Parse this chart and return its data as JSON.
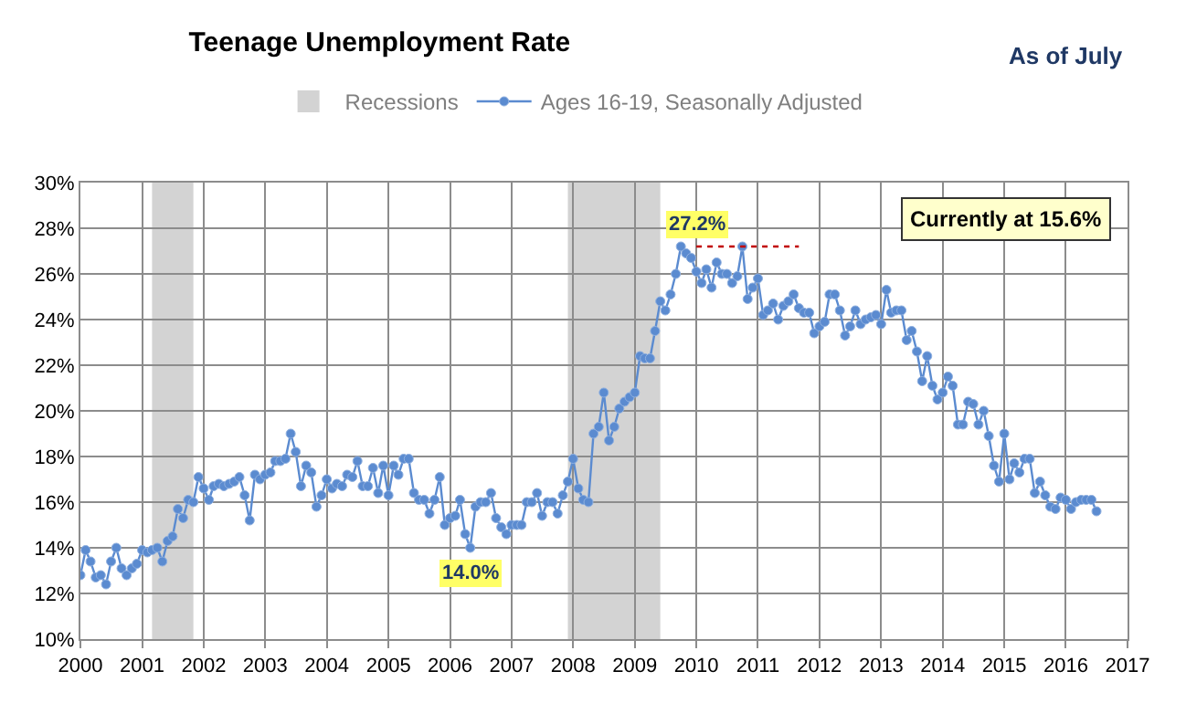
{
  "chart_data": {
    "type": "line",
    "title": "Teenage Unemployment Rate",
    "subtitle": "As of July",
    "x": [
      "2000-01",
      "2000-02",
      "2000-03",
      "2000-04",
      "2000-05",
      "2000-06",
      "2000-07",
      "2000-08",
      "2000-09",
      "2000-10",
      "2000-11",
      "2000-12",
      "2001-01",
      "2001-02",
      "2001-03",
      "2001-04",
      "2001-05",
      "2001-06",
      "2001-07",
      "2001-08",
      "2001-09",
      "2001-10",
      "2001-11",
      "2001-12",
      "2002-01",
      "2002-02",
      "2002-03",
      "2002-04",
      "2002-05",
      "2002-06",
      "2002-07",
      "2002-08",
      "2002-09",
      "2002-10",
      "2002-11",
      "2002-12",
      "2003-01",
      "2003-02",
      "2003-03",
      "2003-04",
      "2003-05",
      "2003-06",
      "2003-07",
      "2003-08",
      "2003-09",
      "2003-10",
      "2003-11",
      "2003-12",
      "2004-01",
      "2004-02",
      "2004-03",
      "2004-04",
      "2004-05",
      "2004-06",
      "2004-07",
      "2004-08",
      "2004-09",
      "2004-10",
      "2004-11",
      "2004-12",
      "2005-01",
      "2005-02",
      "2005-03",
      "2005-04",
      "2005-05",
      "2005-06",
      "2005-07",
      "2005-08",
      "2005-09",
      "2005-10",
      "2005-11",
      "2005-12",
      "2006-01",
      "2006-02",
      "2006-03",
      "2006-04",
      "2006-05",
      "2006-06",
      "2006-07",
      "2006-08",
      "2006-09",
      "2006-10",
      "2006-11",
      "2006-12",
      "2007-01",
      "2007-02",
      "2007-03",
      "2007-04",
      "2007-05",
      "2007-06",
      "2007-07",
      "2007-08",
      "2007-09",
      "2007-10",
      "2007-11",
      "2007-12",
      "2008-01",
      "2008-02",
      "2008-03",
      "2008-04",
      "2008-05",
      "2008-06",
      "2008-07",
      "2008-08",
      "2008-09",
      "2008-10",
      "2008-11",
      "2008-12",
      "2009-01",
      "2009-02",
      "2009-03",
      "2009-04",
      "2009-05",
      "2009-06",
      "2009-07",
      "2009-08",
      "2009-09",
      "2009-10",
      "2009-11",
      "2009-12",
      "2010-01",
      "2010-02",
      "2010-03",
      "2010-04",
      "2010-05",
      "2010-06",
      "2010-07",
      "2010-08",
      "2010-09",
      "2010-10",
      "2010-11",
      "2010-12",
      "2011-01",
      "2011-02",
      "2011-03",
      "2011-04",
      "2011-05",
      "2011-06",
      "2011-07",
      "2011-08",
      "2011-09",
      "2011-10",
      "2011-11",
      "2011-12",
      "2012-01",
      "2012-02",
      "2012-03",
      "2012-04",
      "2012-05",
      "2012-06",
      "2012-07",
      "2012-08",
      "2012-09",
      "2012-10",
      "2012-11",
      "2012-12",
      "2013-01",
      "2013-02",
      "2013-03",
      "2013-04",
      "2013-05",
      "2013-06",
      "2013-07",
      "2013-08",
      "2013-09",
      "2013-10",
      "2013-11",
      "2013-12",
      "2014-01",
      "2014-02",
      "2014-03",
      "2014-04",
      "2014-05",
      "2014-06",
      "2014-07",
      "2014-08",
      "2014-09",
      "2014-10",
      "2014-11",
      "2014-12",
      "2015-01",
      "2015-02",
      "2015-03",
      "2015-04",
      "2015-05",
      "2015-06",
      "2015-07",
      "2015-08",
      "2015-09",
      "2015-10",
      "2015-11",
      "2015-12",
      "2016-01",
      "2016-02",
      "2016-03",
      "2016-04",
      "2016-05",
      "2016-06",
      "2016-07"
    ],
    "series": [
      {
        "name": "Ages 16-19, Seasonally Adjusted",
        "color": "#5b8bd0",
        "marker": "circle",
        "values": [
          12.8,
          13.9,
          13.4,
          12.7,
          12.8,
          12.4,
          13.4,
          14.0,
          13.1,
          12.8,
          13.1,
          13.3,
          13.9,
          13.8,
          13.9,
          14.0,
          13.4,
          14.3,
          14.5,
          15.7,
          15.3,
          16.1,
          16.0,
          17.1,
          16.6,
          16.1,
          16.7,
          16.8,
          16.7,
          16.8,
          16.9,
          17.1,
          16.3,
          15.2,
          17.2,
          17.0,
          17.2,
          17.3,
          17.8,
          17.8,
          17.9,
          19.0,
          18.2,
          16.7,
          17.6,
          17.3,
          15.8,
          16.3,
          17.0,
          16.6,
          16.8,
          16.7,
          17.2,
          17.1,
          17.8,
          16.7,
          16.7,
          17.5,
          16.4,
          17.6,
          16.3,
          17.6,
          17.2,
          17.9,
          17.9,
          16.4,
          16.1,
          16.1,
          15.5,
          16.1,
          17.1,
          15.0,
          15.3,
          15.4,
          16.1,
          14.6,
          14.0,
          15.8,
          16.0,
          16.0,
          16.4,
          15.3,
          14.9,
          14.6,
          15.0,
          15.0,
          15.0,
          16.0,
          16.0,
          16.4,
          15.4,
          16.0,
          16.0,
          15.5,
          16.3,
          16.9,
          17.9,
          16.6,
          16.1,
          16.0,
          19.0,
          19.3,
          20.8,
          18.7,
          19.3,
          20.1,
          20.4,
          20.6,
          20.8,
          22.4,
          22.3,
          22.3,
          23.5,
          24.8,
          24.4,
          25.1,
          26.0,
          27.2,
          26.9,
          26.7,
          26.1,
          25.6,
          26.2,
          25.4,
          26.5,
          26.0,
          26.0,
          25.6,
          25.9,
          27.2,
          24.9,
          25.4,
          25.8,
          24.2,
          24.4,
          24.7,
          24.0,
          24.6,
          24.8,
          25.1,
          24.5,
          24.3,
          24.3,
          23.4,
          23.7,
          23.9,
          25.1,
          25.1,
          24.4,
          23.3,
          23.7,
          24.4,
          23.8,
          24.0,
          24.1,
          24.2,
          23.8,
          25.3,
          24.3,
          24.4,
          24.4,
          23.1,
          23.5,
          22.6,
          21.3,
          22.4,
          21.1,
          20.5,
          20.8,
          21.5,
          21.1,
          19.4,
          19.4,
          20.4,
          20.3,
          19.4,
          20.0,
          18.9,
          17.6,
          16.9,
          19.0,
          17.0,
          17.7,
          17.3,
          17.9,
          17.9,
          16.4,
          16.9,
          16.3,
          15.8,
          15.7,
          16.2,
          16.1,
          15.7,
          16.0,
          16.1,
          16.1,
          16.1,
          15.6
        ]
      },
      {
        "type": "line",
        "color": "#c00000",
        "line_style": "dotted",
        "marker": "none",
        "x": [
          "2010-01",
          "2011-09"
        ],
        "values": [
          27.2,
          27.2
        ]
      }
    ],
    "bands": [
      {
        "axis": "x",
        "from": "2001-03",
        "to": "2001-11",
        "label": "Recessions",
        "color": "#d3d3d3"
      },
      {
        "axis": "x",
        "from": "2007-12",
        "to": "2009-06",
        "color": "#d3d3d3"
      }
    ],
    "annotations": [
      {
        "text": "27.2%",
        "x": "2010-01",
        "y": 27.2
      },
      {
        "text": "14.0%",
        "x": "2006-05",
        "y": 14.0
      },
      "Currently at 15.6%"
    ],
    "xlim": [
      "2000",
      "2017"
    ],
    "xticks": [
      "2000",
      "2001",
      "2002",
      "2003",
      "2004",
      "2005",
      "2006",
      "2007",
      "2008",
      "2009",
      "2010",
      "2011",
      "2012",
      "2013",
      "2014",
      "2015",
      "2016",
      "2017"
    ],
    "ylim": [
      10,
      30
    ],
    "yticks": [
      {
        "value": 10,
        "label": "10%"
      },
      {
        "value": 12,
        "label": "12%"
      },
      {
        "value": 14,
        "label": "14%"
      },
      {
        "value": 16,
        "label": "16%"
      },
      {
        "value": 18,
        "label": "18%"
      },
      {
        "value": 20,
        "label": "20%"
      },
      {
        "value": 22,
        "label": "22%"
      },
      {
        "value": 24,
        "label": "24%"
      },
      {
        "value": 26,
        "label": "26%"
      },
      {
        "value": 28,
        "label": "28%"
      },
      {
        "value": 30,
        "label": "30%"
      }
    ],
    "grid": true,
    "legend": "top"
  }
}
